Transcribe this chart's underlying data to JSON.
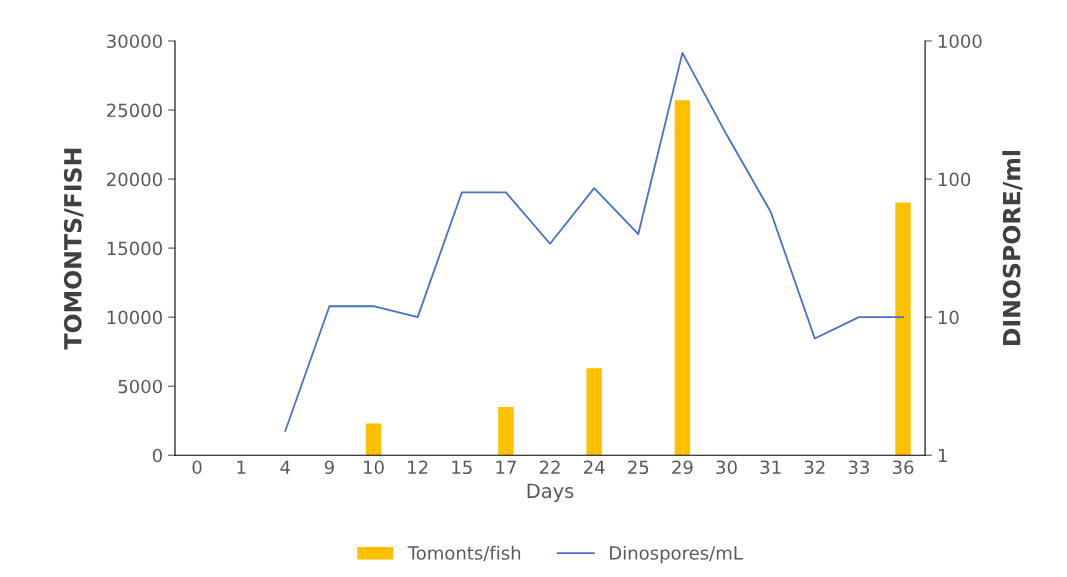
{
  "chart_data": {
    "type": "bar",
    "xlabel": "Days",
    "ylabel": "TOMONTS/FISH",
    "y2label": "DINOSPORE/ml",
    "categories": [
      "0",
      "1",
      "4",
      "9",
      "10",
      "12",
      "15",
      "17",
      "22",
      "24",
      "25",
      "29",
      "30",
      "31",
      "32",
      "33",
      "36"
    ],
    "series": [
      {
        "name": "Tomonts/fish",
        "color": "#ffc000",
        "values": [
          null,
          null,
          null,
          null,
          2300,
          null,
          null,
          3500,
          null,
          6300,
          null,
          25700,
          null,
          null,
          null,
          null,
          18300
        ]
      },
      {
        "name": "Dinospores/mL",
        "type": "line",
        "axis": "y2",
        "color": "#4472c4",
        "values": [
          null,
          null,
          1.5,
          12,
          12,
          10,
          80,
          80,
          34,
          86,
          40,
          820,
          210,
          58,
          7,
          10,
          10
        ]
      }
    ],
    "ylim": [
      0,
      30000
    ],
    "yticks": [
      0,
      5000,
      10000,
      15000,
      20000,
      25000,
      30000
    ],
    "log": "y2",
    "y2lim": [
      1,
      1000
    ],
    "y2ticks": [
      1,
      10,
      100,
      1000
    ],
    "legend": "bottom"
  }
}
